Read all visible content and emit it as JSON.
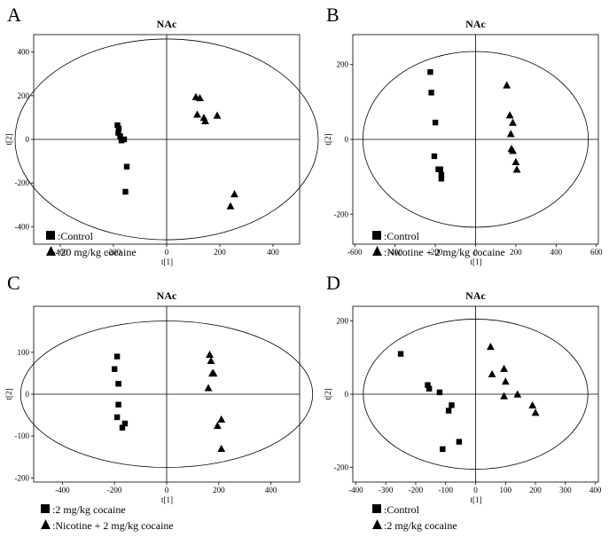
{
  "chart_data": [
    {
      "type": "scatter",
      "panel": "A",
      "title": "NAc",
      "xlabel": "t[1]",
      "ylabel": "t[2]",
      "xlim": [
        -500,
        500
      ],
      "ylim": [
        -480,
        480
      ],
      "xticks": [
        -400,
        -200,
        0,
        200,
        400
      ],
      "yticks": [
        -400,
        -200,
        0,
        200,
        400
      ],
      "ellipse": {
        "rx": 570,
        "ry": 460
      },
      "series": [
        {
          "name": ":Control",
          "marker": "square",
          "x": [
            -185,
            -180,
            -182,
            -175,
            -170,
            -160,
            -150,
            -155
          ],
          "y": [
            65,
            50,
            30,
            15,
            -5,
            0,
            -125,
            -240
          ]
        },
        {
          "name": ":20 mg/kg cocaine",
          "marker": "triangle",
          "x": [
            110,
            125,
            115,
            140,
            145,
            190,
            255,
            240
          ],
          "y": [
            195,
            190,
            115,
            100,
            85,
            110,
            -250,
            -305
          ]
        }
      ]
    },
    {
      "type": "scatter",
      "panel": "B",
      "title": "NAc",
      "xlabel": "t[1]",
      "ylabel": "t[2]",
      "xlim": [
        -610,
        610
      ],
      "ylim": [
        -280,
        280
      ],
      "xticks": [
        -600,
        -400,
        -200,
        0,
        200,
        400,
        600
      ],
      "yticks": [
        -200,
        0,
        200
      ],
      "ellipse": {
        "rx": 560,
        "ry": 235
      },
      "series": [
        {
          "name": ":Control",
          "marker": "square",
          "x": [
            -225,
            -220,
            -200,
            -205,
            -185,
            -175,
            -170,
            -170
          ],
          "y": [
            180,
            125,
            45,
            -45,
            -80,
            -80,
            -95,
            -105
          ]
        },
        {
          "name": ":Nicotine + 2 mg/kg cocaine",
          "marker": "triangle",
          "x": [
            155,
            170,
            185,
            175,
            178,
            185,
            200,
            205
          ],
          "y": [
            145,
            65,
            45,
            15,
            -25,
            -30,
            -60,
            -80
          ]
        }
      ]
    },
    {
      "type": "scatter",
      "panel": "C",
      "title": "NAc",
      "xlabel": "t[1]",
      "ylabel": "t[2]",
      "xlim": [
        -510,
        510
      ],
      "ylim": [
        -210,
        210
      ],
      "xticks": [
        -400,
        -200,
        0,
        200,
        400
      ],
      "yticks": [
        -200,
        -100,
        0,
        100
      ],
      "ellipse": {
        "rx": 560,
        "ry": 175
      },
      "series": [
        {
          "name": ":2 mg/kg cocaine",
          "marker": "square",
          "x": [
            -190,
            -200,
            -185,
            -185,
            -185,
            -190,
            -160,
            -170
          ],
          "y": [
            90,
            60,
            25,
            25,
            -25,
            -55,
            -70,
            -80
          ]
        },
        {
          "name": ":Nicotine + 2 mg/kg cocaine",
          "marker": "triangle",
          "x": [
            165,
            170,
            180,
            175,
            160,
            210,
            195,
            210
          ],
          "y": [
            95,
            80,
            50,
            50,
            15,
            -60,
            -75,
            -130
          ]
        }
      ]
    },
    {
      "type": "scatter",
      "panel": "D",
      "title": "NAc",
      "xlabel": "t[1]",
      "ylabel": "t[2]",
      "xlim": [
        -410,
        410
      ],
      "ylim": [
        -240,
        240
      ],
      "xticks": [
        -400,
        -300,
        -200,
        -100,
        0,
        100,
        200,
        300,
        400
      ],
      "yticks": [
        -200,
        0,
        200
      ],
      "ellipse": {
        "rx": 375,
        "ry": 205
      },
      "series": [
        {
          "name": ":Control",
          "marker": "square",
          "x": [
            -250,
            -160,
            -155,
            -120,
            -90,
            -80,
            -55,
            -110
          ],
          "y": [
            110,
            25,
            15,
            5,
            -45,
            -30,
            -130,
            -150
          ]
        },
        {
          "name": ":2 mg/kg cocaine",
          "marker": "triangle",
          "x": [
            50,
            55,
            95,
            100,
            95,
            140,
            190,
            200
          ],
          "y": [
            130,
            55,
            70,
            35,
            -5,
            0,
            -30,
            -50
          ]
        }
      ]
    }
  ]
}
